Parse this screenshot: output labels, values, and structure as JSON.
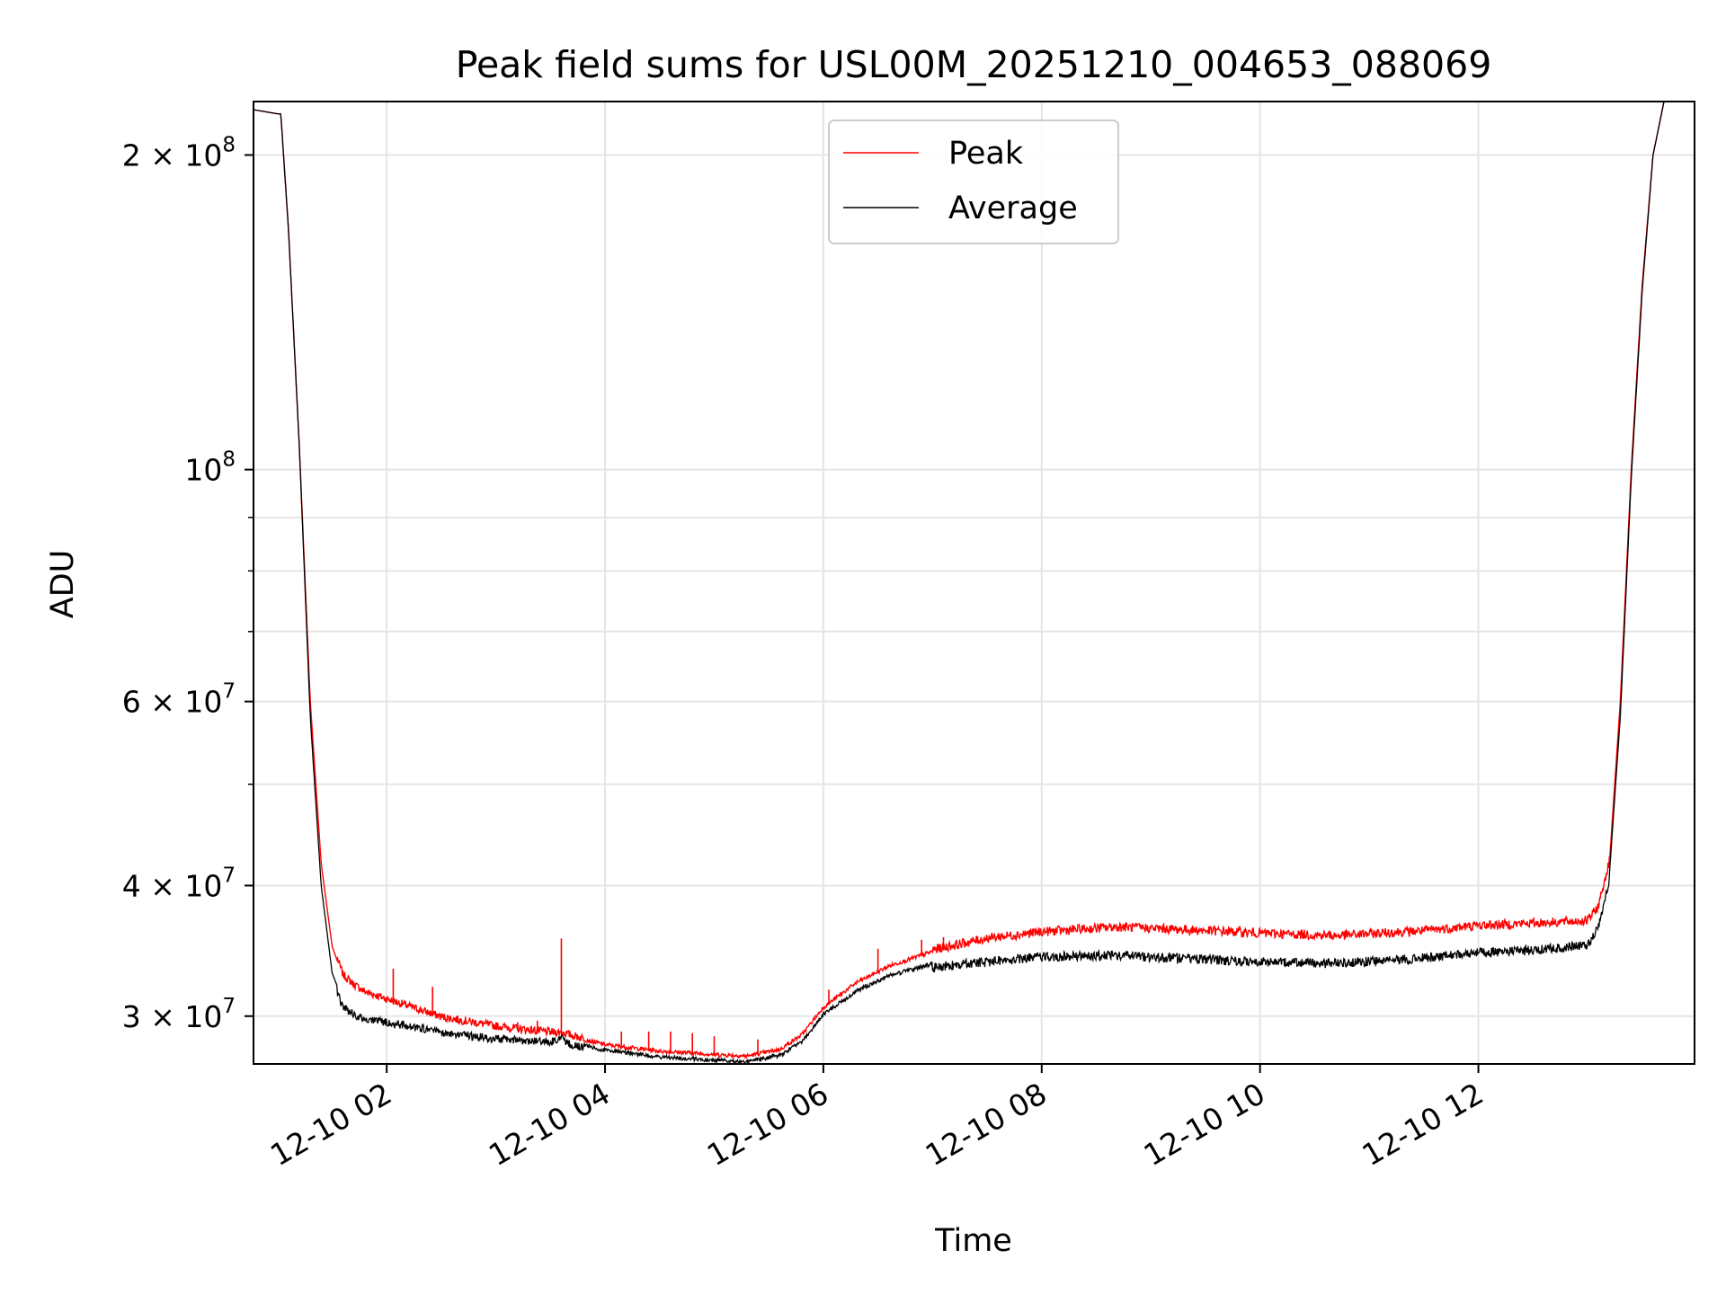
{
  "chart_data": {
    "type": "line",
    "title": "Peak field sums for USL00M_20251210_004653_088069",
    "xlabel": "Time",
    "ylabel": "ADU",
    "yscale": "log",
    "xlim": [
      0.78,
      13.98
    ],
    "ylim": [
      27000000,
      225000000
    ],
    "grid": true,
    "legend_position": "top-center",
    "x_ticks": [
      {
        "value": 2,
        "label": "12-10 02"
      },
      {
        "value": 4,
        "label": "12-10 04"
      },
      {
        "value": 6,
        "label": "12-10 06"
      },
      {
        "value": 8,
        "label": "12-10 08"
      },
      {
        "value": 10,
        "label": "12-10 10"
      },
      {
        "value": 12,
        "label": "12-10 12"
      }
    ],
    "y_ticks": [
      {
        "value": 30000000,
        "base": "3 × 10",
        "exp": "7"
      },
      {
        "value": 40000000,
        "base": "4 × 10",
        "exp": "7"
      },
      {
        "value": 60000000,
        "base": "6 × 10",
        "exp": "7"
      },
      {
        "value": 100000000,
        "base": "10",
        "exp": "8"
      },
      {
        "value": 200000000,
        "base": "2 × 10",
        "exp": "8"
      }
    ],
    "y_minor_ticks": [
      50000000,
      70000000,
      80000000,
      90000000
    ],
    "series": [
      {
        "name": "Peak",
        "color": "#ff0000",
        "x": [
          0.78,
          1.0,
          1.03,
          1.1,
          1.2,
          1.3,
          1.4,
          1.5,
          1.6,
          1.7,
          1.8,
          2.0,
          2.5,
          3.0,
          3.5,
          3.6,
          3.7,
          4.0,
          4.5,
          5.0,
          5.3,
          5.6,
          5.8,
          6.0,
          6.3,
          6.6,
          7.0,
          7.5,
          8.0,
          8.7,
          9.5,
          10.0,
          10.7,
          11.5,
          12.0,
          12.5,
          13.0,
          13.1,
          13.2,
          13.3,
          13.4,
          13.5,
          13.6,
          13.7,
          13.75,
          13.98
        ],
        "y": [
          221000000,
          219000000,
          219000000,
          170000000,
          105000000,
          60000000,
          42000000,
          35000000,
          32700000,
          32000000,
          31500000,
          31000000,
          29800000,
          29200000,
          28800000,
          28800000,
          28600000,
          28100000,
          27700000,
          27500000,
          27400000,
          27800000,
          28700000,
          30500000,
          32200000,
          33400000,
          34500000,
          35400000,
          35900000,
          36300000,
          36000000,
          35800000,
          35600000,
          36000000,
          36400000,
          36600000,
          36800000,
          38000000,
          42000000,
          60000000,
          100000000,
          150000000,
          200000000,
          225000000,
          225000000,
          225000000
        ],
        "spikes": [
          {
            "x": 2.06,
            "y": 33300000
          },
          {
            "x": 2.42,
            "y": 32000000
          },
          {
            "x": 3.2,
            "y": 29600000
          },
          {
            "x": 3.38,
            "y": 29700000
          },
          {
            "x": 3.6,
            "y": 35600000
          },
          {
            "x": 4.15,
            "y": 29000000
          },
          {
            "x": 4.4,
            "y": 29000000
          },
          {
            "x": 4.6,
            "y": 29000000
          },
          {
            "x": 4.8,
            "y": 28900000
          },
          {
            "x": 5.0,
            "y": 28700000
          },
          {
            "x": 5.4,
            "y": 28500000
          },
          {
            "x": 6.05,
            "y": 31800000
          },
          {
            "x": 6.5,
            "y": 34800000
          },
          {
            "x": 6.9,
            "y": 35500000
          },
          {
            "x": 7.1,
            "y": 35700000
          }
        ]
      },
      {
        "name": "Average",
        "color": "#000000",
        "x": [
          0.78,
          1.0,
          1.03,
          1.1,
          1.2,
          1.3,
          1.4,
          1.5,
          1.6,
          1.7,
          1.8,
          2.0,
          2.5,
          3.0,
          3.5,
          3.6,
          3.7,
          4.0,
          4.5,
          5.0,
          5.3,
          5.6,
          5.8,
          6.0,
          6.3,
          6.6,
          7.0,
          7.5,
          8.0,
          8.7,
          9.5,
          10.0,
          10.7,
          11.5,
          12.0,
          12.5,
          13.0,
          13.1,
          13.2,
          13.3,
          13.4,
          13.5,
          13.6,
          13.7,
          13.75,
          13.98
        ],
        "y": [
          221000000,
          219000000,
          219000000,
          170000000,
          105000000,
          58000000,
          40000000,
          33000000,
          31000000,
          30500000,
          30200000,
          30000000,
          29300000,
          28900000,
          28700000,
          28900000,
          28500000,
          28000000,
          27600000,
          27400000,
          27300000,
          27700000,
          28500000,
          30300000,
          31900000,
          33000000,
          33900000,
          34300000,
          34700000,
          34800000,
          34500000,
          34300000,
          34200000,
          34600000,
          35000000,
          35200000,
          35600000,
          37000000,
          41000000,
          58000000,
          98000000,
          148000000,
          200000000,
          225000000,
          225000000,
          225000000
        ]
      }
    ]
  }
}
